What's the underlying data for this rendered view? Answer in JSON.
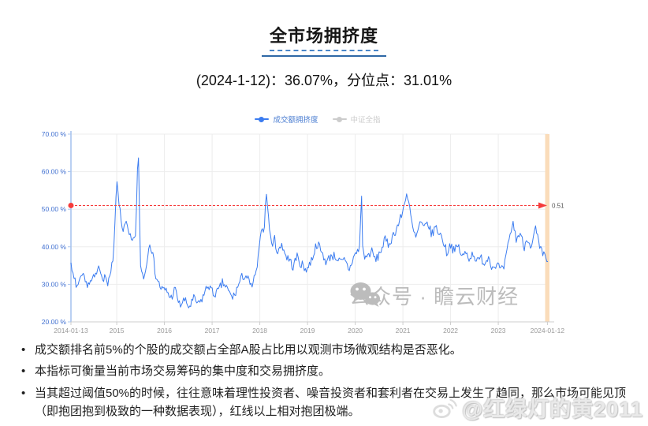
{
  "page": {
    "title": "全市场拥挤度",
    "subtitle": "(2024-1-12)：36.07%，分位点：31.01%"
  },
  "chart": {
    "legend": [
      {
        "label": "成交额拥挤度",
        "color": "#3b7cf0",
        "active": true
      },
      {
        "label": "中证全指",
        "color": "#c8c8c8",
        "active": false
      }
    ],
    "threshold_label": "0.51",
    "colors": {
      "series": "#3b7cf0",
      "threshold": "#f53b3b",
      "highlight_band": "#fadcba",
      "axis_line": "#a9c5ef",
      "x_axis_line": "#cccccc",
      "grid": "#ededed",
      "y_label": "#3f6fd0",
      "x_label": "#999999",
      "threshold_text": "#555555"
    }
  },
  "chart_data": {
    "type": "line",
    "title": "全市场拥挤度",
    "x_axis": {
      "range_years": [
        2014.04,
        2024.04
      ],
      "ticks": [
        {
          "t": 2014.04,
          "label": "2014-01-13"
        },
        {
          "t": 2015,
          "label": "2015"
        },
        {
          "t": 2016,
          "label": "2016"
        },
        {
          "t": 2017,
          "label": "2017"
        },
        {
          "t": 2018,
          "label": "2018"
        },
        {
          "t": 2019,
          "label": "2019"
        },
        {
          "t": 2020,
          "label": "2020"
        },
        {
          "t": 2021,
          "label": "2021"
        },
        {
          "t": 2022,
          "label": "2022"
        },
        {
          "t": 2023,
          "label": "2023"
        },
        {
          "t": 2024.03,
          "label": "2024-01-12"
        }
      ]
    },
    "y_axis": {
      "range_pct": [
        20,
        70
      ],
      "tick_values": [
        70,
        60,
        50,
        40,
        30,
        20
      ],
      "tick_labels": [
        "70.00 %",
        "60.00 %",
        "50.00 %",
        "40.00 %",
        "30.00 %",
        "20.00 %"
      ]
    },
    "threshold_pct": 51,
    "latest": {
      "date": "2024-1-12",
      "value_pct": 36.07,
      "percentile_pct": 31.01
    },
    "series": [
      {
        "name": "成交额拥挤度",
        "unit": "%",
        "visible": true,
        "points": [
          [
            2014.04,
            36
          ],
          [
            2014.1,
            32.5
          ],
          [
            2014.18,
            30.5
          ],
          [
            2014.28,
            32.5
          ],
          [
            2014.36,
            29
          ],
          [
            2014.45,
            29.5
          ],
          [
            2014.55,
            31.5
          ],
          [
            2014.62,
            34
          ],
          [
            2014.72,
            32
          ],
          [
            2014.8,
            30.5
          ],
          [
            2014.88,
            33
          ],
          [
            2014.94,
            39
          ],
          [
            2015.0,
            58
          ],
          [
            2015.06,
            50
          ],
          [
            2015.12,
            44.5
          ],
          [
            2015.18,
            47.5
          ],
          [
            2015.26,
            43.5
          ],
          [
            2015.34,
            41
          ],
          [
            2015.4,
            44
          ],
          [
            2015.45,
            67.5
          ],
          [
            2015.5,
            34
          ],
          [
            2015.56,
            31.5
          ],
          [
            2015.62,
            34
          ],
          [
            2015.68,
            42
          ],
          [
            2015.74,
            39.5
          ],
          [
            2015.82,
            33
          ],
          [
            2015.9,
            30.5
          ],
          [
            2015.97,
            29
          ],
          [
            2016.05,
            28
          ],
          [
            2016.13,
            25.5
          ],
          [
            2016.22,
            28.5
          ],
          [
            2016.32,
            24.5
          ],
          [
            2016.42,
            26.5
          ],
          [
            2016.52,
            24.5
          ],
          [
            2016.62,
            26.5
          ],
          [
            2016.72,
            25
          ],
          [
            2016.82,
            27.5
          ],
          [
            2016.92,
            30
          ],
          [
            2017.02,
            27.5
          ],
          [
            2017.12,
            28.5
          ],
          [
            2017.22,
            30
          ],
          [
            2017.32,
            27.5
          ],
          [
            2017.42,
            26.5
          ],
          [
            2017.52,
            29
          ],
          [
            2017.62,
            31
          ],
          [
            2017.72,
            32
          ],
          [
            2017.82,
            30
          ],
          [
            2017.92,
            33.5
          ],
          [
            2018.0,
            41
          ],
          [
            2018.04,
            48
          ],
          [
            2018.08,
            43.5
          ],
          [
            2018.13,
            55
          ],
          [
            2018.18,
            49
          ],
          [
            2018.24,
            41
          ],
          [
            2018.3,
            43
          ],
          [
            2018.38,
            38.5
          ],
          [
            2018.46,
            41
          ],
          [
            2018.54,
            37.5
          ],
          [
            2018.62,
            36
          ],
          [
            2018.7,
            34
          ],
          [
            2018.78,
            38
          ],
          [
            2018.86,
            36.5
          ],
          [
            2018.94,
            34
          ],
          [
            2019.02,
            33.5
          ],
          [
            2019.1,
            36.5
          ],
          [
            2019.2,
            41
          ],
          [
            2019.3,
            38
          ],
          [
            2019.4,
            35.5
          ],
          [
            2019.5,
            37.5
          ],
          [
            2019.6,
            36.5
          ],
          [
            2019.7,
            34.5
          ],
          [
            2019.78,
            35.5
          ],
          [
            2019.88,
            33.5
          ],
          [
            2019.96,
            36.5
          ],
          [
            2020.04,
            37.5
          ],
          [
            2020.1,
            39
          ],
          [
            2020.13,
            56
          ],
          [
            2020.16,
            37
          ],
          [
            2020.24,
            36.5
          ],
          [
            2020.34,
            39.5
          ],
          [
            2020.44,
            37.5
          ],
          [
            2020.54,
            40
          ],
          [
            2020.62,
            42.5
          ],
          [
            2020.7,
            41
          ],
          [
            2020.8,
            43.5
          ],
          [
            2020.9,
            46
          ],
          [
            2021.0,
            50
          ],
          [
            2021.08,
            54.5
          ],
          [
            2021.14,
            51.5
          ],
          [
            2021.2,
            46
          ],
          [
            2021.28,
            43
          ],
          [
            2021.36,
            46.5
          ],
          [
            2021.44,
            44
          ],
          [
            2021.52,
            46.5
          ],
          [
            2021.6,
            43.5
          ],
          [
            2021.68,
            45.5
          ],
          [
            2021.76,
            44
          ],
          [
            2021.84,
            42
          ],
          [
            2021.92,
            38.5
          ],
          [
            2022.0,
            40.5
          ],
          [
            2022.08,
            37.5
          ],
          [
            2022.16,
            39.5
          ],
          [
            2022.24,
            36.5
          ],
          [
            2022.32,
            38
          ],
          [
            2022.4,
            36.5
          ],
          [
            2022.48,
            38
          ],
          [
            2022.56,
            36
          ],
          [
            2022.64,
            37.5
          ],
          [
            2022.72,
            36
          ],
          [
            2022.8,
            38
          ],
          [
            2022.88,
            35
          ],
          [
            2022.96,
            36.5
          ],
          [
            2023.04,
            35
          ],
          [
            2023.1,
            34.5
          ],
          [
            2023.2,
            40
          ],
          [
            2023.3,
            45.5
          ],
          [
            2023.38,
            41.5
          ],
          [
            2023.46,
            44
          ],
          [
            2023.54,
            40.5
          ],
          [
            2023.62,
            43.5
          ],
          [
            2023.7,
            40
          ],
          [
            2023.78,
            45
          ],
          [
            2023.86,
            39.5
          ],
          [
            2023.94,
            38
          ],
          [
            2024.0,
            37.5
          ],
          [
            2024.04,
            36.07
          ]
        ]
      },
      {
        "name": "中证全指",
        "visible": false,
        "points": []
      }
    ]
  },
  "notes": [
    "成交额排名前5%的个股的成交额占全部A股占比用以观测市场微观结构是否恶化。",
    "本指标可衡量当前市场交易筹码的集中度和交易拥挤度。",
    "当其超过阈值50%的时候，往往意味着理性投资者、噪音投资者和套利者在交易上发生了趋同，那么市场可能见顶（即抱团抱到极致的一种数据表现），红线以上相对抱团极端。"
  ],
  "watermarks": {
    "chart": "公众号 · 瞻云财经",
    "footer": "@红绿灯的黄2011"
  }
}
